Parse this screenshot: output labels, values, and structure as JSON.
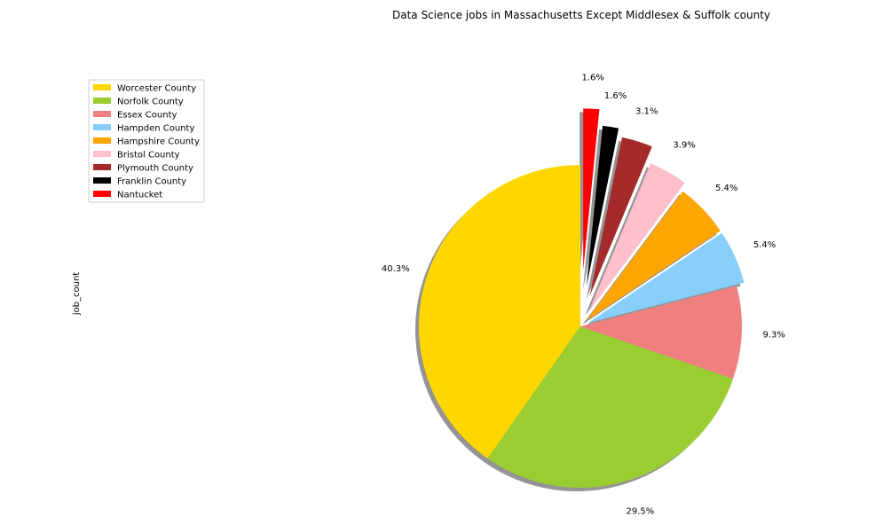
{
  "chart_data": {
    "type": "pie",
    "title": "Data Science jobs in Massachusetts Except Middlesex & Suffolk county",
    "ylabel": "job_count",
    "legend_position": "upper-left",
    "shadow": true,
    "start_angle": 90,
    "direction": "counterclockwise",
    "slices": [
      {
        "label": "Worcester County",
        "percent": 40.3,
        "pct_label": "40.3%",
        "color": "#FFD700",
        "explode": 0.0
      },
      {
        "label": "Norfolk County",
        "percent": 29.5,
        "pct_label": "29.5%",
        "color": "#9ACD32",
        "explode": 0.0
      },
      {
        "label": "Essex County",
        "percent": 9.3,
        "pct_label": "9.3%",
        "color": "#F08080",
        "explode": 0.0
      },
      {
        "label": "Hampden County",
        "percent": 5.4,
        "pct_label": "5.4%",
        "color": "#87CEFA",
        "explode": 0.05
      },
      {
        "label": "Hampshire County",
        "percent": 5.4,
        "pct_label": "5.4%",
        "color": "#FFA500",
        "explode": 0.05
      },
      {
        "label": "Bristol County",
        "percent": 3.9,
        "pct_label": "3.9%",
        "color": "#FFC0CB",
        "explode": 0.1
      },
      {
        "label": "Plymouth County",
        "percent": 3.1,
        "pct_label": "3.1%",
        "color": "#A52A2A",
        "explode": 0.2
      },
      {
        "label": "Franklin County",
        "percent": 1.6,
        "pct_label": "1.6%",
        "color": "#000000",
        "explode": 0.25
      },
      {
        "label": "Nantucket",
        "percent": 1.6,
        "pct_label": "1.6%",
        "color": "#FF0000",
        "explode": 0.35
      }
    ]
  }
}
